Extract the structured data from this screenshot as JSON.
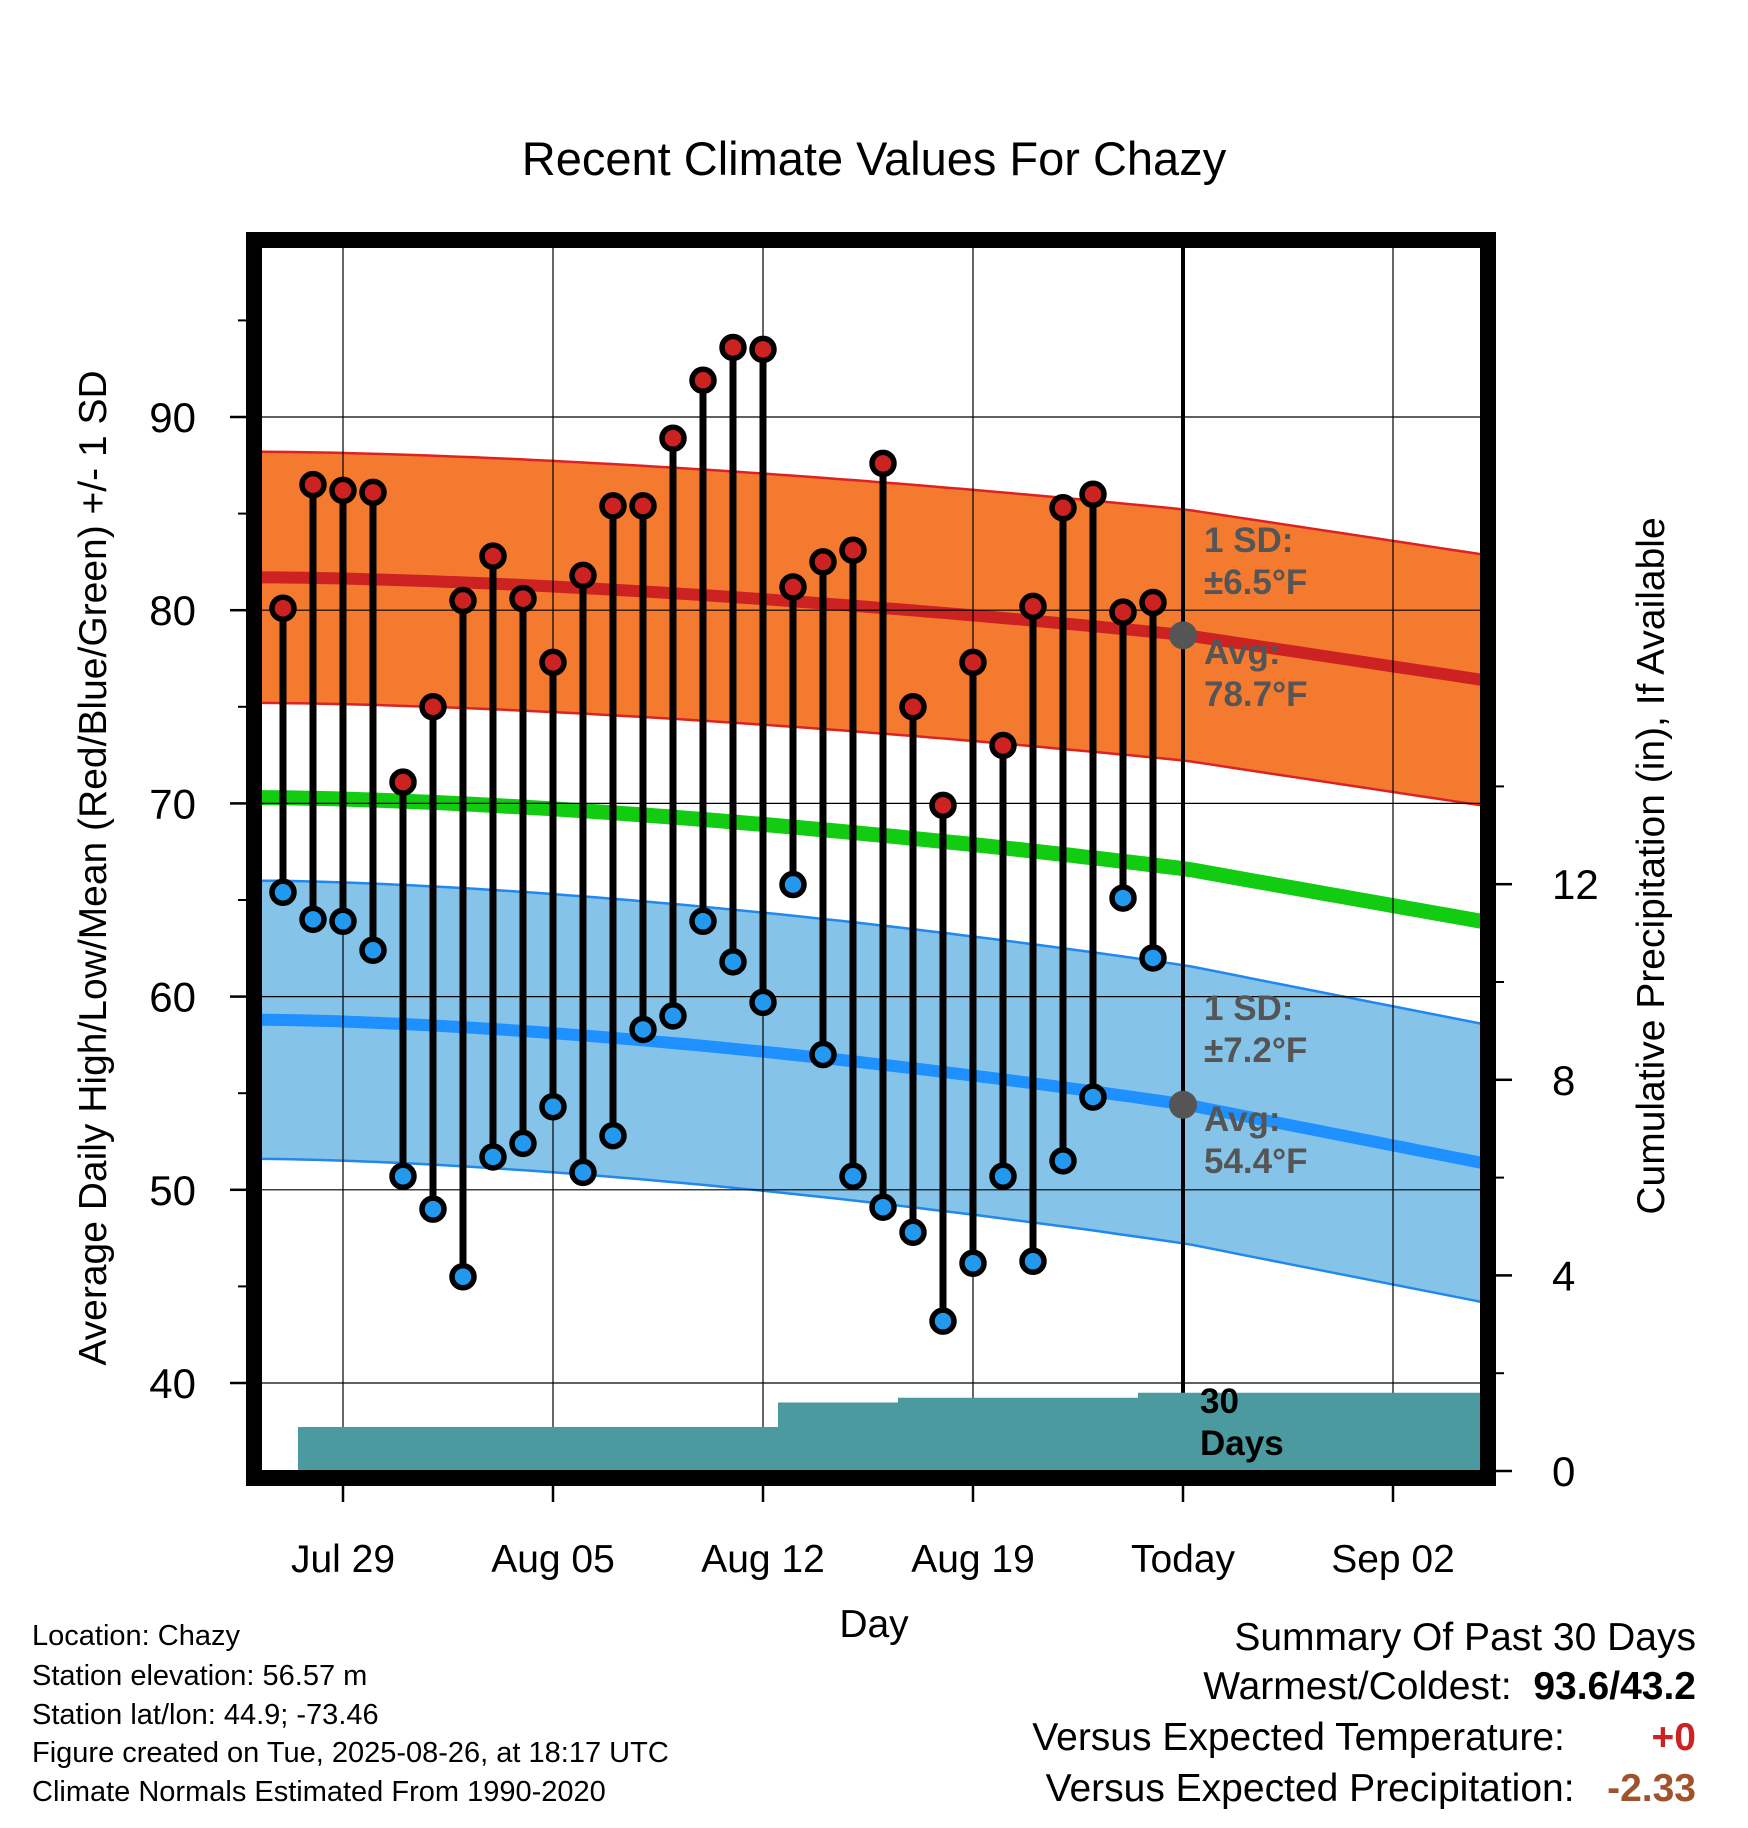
{
  "chart_data": {
    "type": "line",
    "title": "Recent Climate Values For Chazy",
    "xlabel": "Day",
    "ylabel": "Average Daily High/Low/Mean (Red/Blue/Green) +/- 1 SD",
    "y2label": "Cumulative Precipitation (in), If Available",
    "ylim": [
      35,
      98
    ],
    "y2lim": [
      0,
      24
    ],
    "y_ticks": [
      40,
      50,
      60,
      70,
      80,
      90
    ],
    "y2_ticks": [
      0,
      4,
      8,
      12
    ],
    "x_tick_labels": [
      "Jul 29",
      "Aug 05",
      "Aug 12",
      "Aug 19",
      "Today",
      "Sep 02"
    ],
    "days": [
      "Jul 27",
      "Jul 28",
      "Jul 29",
      "Jul 30",
      "Jul 31",
      "Aug 01",
      "Aug 02",
      "Aug 03",
      "Aug 04",
      "Aug 05",
      "Aug 06",
      "Aug 07",
      "Aug 08",
      "Aug 09",
      "Aug 10",
      "Aug 11",
      "Aug 12",
      "Aug 13",
      "Aug 14",
      "Aug 15",
      "Aug 16",
      "Aug 17",
      "Aug 18",
      "Aug 19",
      "Aug 20",
      "Aug 21",
      "Aug 22",
      "Aug 23",
      "Aug 24",
      "Aug 25"
    ],
    "series": [
      {
        "name": "High",
        "color": "#cc2222",
        "values": [
          80.1,
          86.5,
          86.2,
          86.1,
          71.1,
          75.0,
          80.5,
          82.8,
          80.6,
          77.3,
          81.8,
          85.4,
          85.4,
          88.9,
          91.9,
          93.6,
          93.5,
          81.2,
          82.5,
          83.1,
          87.6,
          75.0,
          69.9,
          77.3,
          73.0,
          80.2,
          85.3,
          86.0,
          79.9,
          80.4
        ]
      },
      {
        "name": "Low",
        "color": "#2299ee",
        "values": [
          65.4,
          64.0,
          63.9,
          62.4,
          50.7,
          49.0,
          45.5,
          51.7,
          52.4,
          54.3,
          50.9,
          52.8,
          58.3,
          59.0,
          63.9,
          61.8,
          59.7,
          65.8,
          57.0,
          50.7,
          49.1,
          47.8,
          43.2,
          46.2,
          50.7,
          46.3,
          51.5,
          54.8,
          65.1,
          62.0
        ]
      }
    ],
    "normal_high": {
      "start": 81.7,
      "today": 78.7,
      "end": 76.4,
      "sd": 6.5
    },
    "normal_low": {
      "start": 58.8,
      "today": 54.4,
      "end": 51.4,
      "sd": 7.2
    },
    "normal_mean": {
      "start": 70.3,
      "today": 66.6,
      "end": 63.9
    },
    "precip_cumulative": [
      0,
      0.9,
      0.9,
      0.9,
      0.9,
      0.9,
      0.9,
      0.9,
      0.9,
      0.9,
      0.9,
      0.9,
      0.9,
      0.9,
      0.9,
      0.9,
      0.9,
      1.4,
      1.4,
      1.4,
      1.4,
      1.5,
      1.5,
      1.5,
      1.5,
      1.5,
      1.5,
      1.5,
      1.5,
      1.6,
      1.6
    ],
    "annotations": {
      "high_sd_l1": "1 SD:",
      "high_sd_l2": "±6.5°F",
      "high_avg_l1": "Avg:",
      "high_avg_l2": "78.7°F",
      "low_sd_l1": "1 SD:",
      "low_sd_l2": "±7.2°F",
      "low_avg_l1": "Avg:",
      "low_avg_l2": "54.4°F",
      "precip_l1": "30",
      "precip_l2": "Days"
    },
    "colors": {
      "high_band": "#f47a30",
      "low_band": "#85c4e8",
      "mean": "#11cc11",
      "precip": "#4a9aa0"
    }
  },
  "info": {
    "location": "Location: Chazy",
    "elevation": "Station elevation: 56.57 m",
    "latlon": "Station lat/lon: 44.9; -73.46",
    "created": "Figure created on Tue, 2025-08-26, at 18:17 UTC",
    "normals": "Climate Normals Estimated From 1990-2020"
  },
  "summary": {
    "title": "Summary Of Past 30 Days",
    "warm_cold_label": "Warmest/Coldest:",
    "warm_cold_value": "93.6/43.2",
    "temp_label": "Versus Expected Temperature:",
    "temp_value": "+0",
    "precip_label": "Versus Expected Precipitation:",
    "precip_value": "-2.33"
  }
}
